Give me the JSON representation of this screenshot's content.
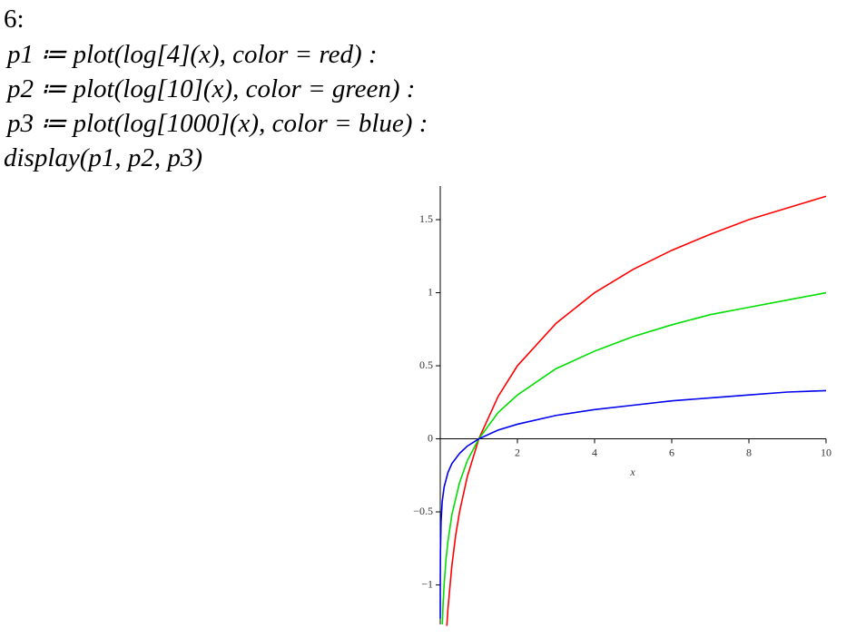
{
  "prompt_label": "6:",
  "commands": [
    "p1 ≔ plot(log[4](x), color = red) :",
    "p2 ≔ plot(log[10](x), color = green) :",
    "p3 ≔ plot(log[1000](x), color = blue) :",
    "display(p1, p2, p3)"
  ],
  "chart_data": {
    "type": "line",
    "x_label": "x",
    "xlim": [
      0,
      10
    ],
    "ylim": [
      -1.27,
      1.73
    ],
    "xticks": [
      2,
      4,
      6,
      8,
      10
    ],
    "yticks": [
      {
        "value": -1,
        "label": "−1"
      },
      {
        "value": -0.5,
        "label": "−0.5"
      },
      0,
      0.5,
      1,
      1.5
    ],
    "grid": false,
    "series": [
      {
        "color": "#ff0000",
        "x": [
          0.17,
          0.2,
          0.3,
          0.4,
          0.5,
          0.7,
          1,
          1.5,
          2,
          3,
          4,
          5,
          6,
          7,
          8,
          9,
          10
        ],
        "values": [
          -1.28,
          -1.16,
          -0.87,
          -0.66,
          -0.5,
          -0.26,
          0,
          0.29,
          0.5,
          0.79,
          1,
          1.16,
          1.29,
          1.4,
          1.5,
          1.58,
          1.66
        ]
      },
      {
        "color": "#00dd00",
        "x": [
          0.054,
          0.07,
          0.1,
          0.15,
          0.2,
          0.3,
          0.5,
          0.7,
          1,
          1.5,
          2,
          3,
          4,
          5,
          6,
          7,
          8,
          9,
          10
        ],
        "values": [
          -1.27,
          -1.15,
          -1,
          -0.82,
          -0.7,
          -0.52,
          -0.3,
          -0.15,
          0,
          0.18,
          0.3,
          0.48,
          0.6,
          0.7,
          0.78,
          0.85,
          0.9,
          0.95,
          1
        ]
      },
      {
        "color": "#0000ee",
        "x": [
          0.0002,
          0.001,
          0.005,
          0.02,
          0.05,
          0.1,
          0.2,
          0.3,
          0.5,
          0.7,
          1,
          1.5,
          2,
          3,
          4,
          5,
          6,
          7,
          8,
          9,
          10
        ],
        "values": [
          -1.23,
          -1,
          -0.77,
          -0.57,
          -0.43,
          -0.33,
          -0.23,
          -0.17,
          -0.1,
          -0.05,
          0,
          0.06,
          0.1,
          0.16,
          0.2,
          0.23,
          0.26,
          0.28,
          0.3,
          0.32,
          0.33
        ]
      }
    ]
  }
}
